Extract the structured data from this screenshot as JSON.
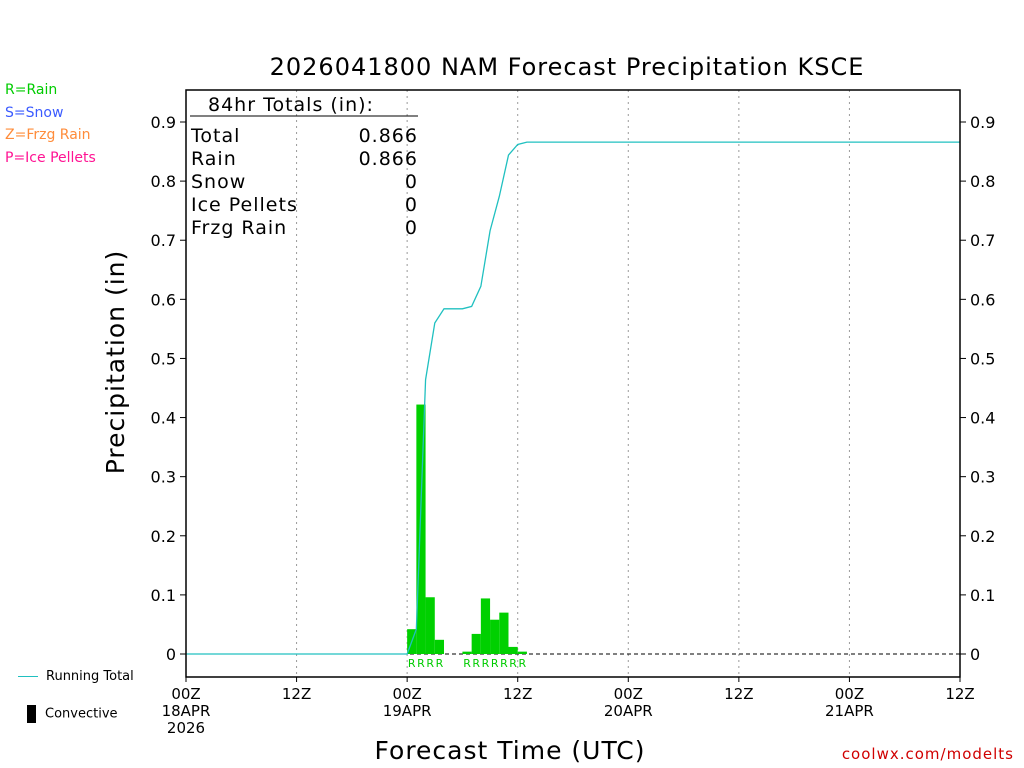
{
  "legend_keys": [
    {
      "text": "R=Rain",
      "color": "#00cc00"
    },
    {
      "text": "S=Snow",
      "color": "#3b5bff"
    },
    {
      "text": "Z=Frzg Rain",
      "color": "#ff8c3a"
    },
    {
      "text": "P=Ice Pellets",
      "color": "#ff1493"
    }
  ],
  "bottom_legend": {
    "running_total": "Running Total",
    "convective": "Convective"
  },
  "footer": "coolwx.com/modelts",
  "totals_box": {
    "title": "84hr Totals (in):",
    "rows": [
      {
        "label": "Total",
        "value": "0.866"
      },
      {
        "label": "Rain",
        "value": "0.866"
      },
      {
        "label": "Snow",
        "value": "0"
      },
      {
        "label": "Ice Pellets",
        "value": "0"
      },
      {
        "label": "Frzg Rain",
        "value": "0"
      }
    ]
  },
  "chart_data": {
    "type": "bar",
    "title": "2026041800 NAM Forecast Precipitation KSCE",
    "xlabel": "Forecast Time (UTC)",
    "ylabel": "Precipitation (in)",
    "xlim": [
      0,
      84
    ],
    "ylim": [
      -0.04,
      0.95
    ],
    "yticks": [
      0,
      0.1,
      0.2,
      0.3,
      0.4,
      0.5,
      0.6,
      0.7,
      0.8,
      0.9
    ],
    "ytick_labels": [
      "0",
      "0.1",
      "0.2",
      "0.3",
      "0.4",
      "0.5",
      "0.6",
      "0.7",
      "0.8",
      "0.9"
    ],
    "xticks": [
      {
        "hour": 0,
        "lines": [
          "00Z",
          "18APR",
          "2026"
        ]
      },
      {
        "hour": 12,
        "lines": [
          "12Z"
        ]
      },
      {
        "hour": 24,
        "lines": [
          "00Z",
          "19APR"
        ]
      },
      {
        "hour": 36,
        "lines": [
          "12Z"
        ]
      },
      {
        "hour": 48,
        "lines": [
          "00Z",
          "20APR"
        ]
      },
      {
        "hour": 60,
        "lines": [
          "12Z"
        ]
      },
      {
        "hour": 72,
        "lines": [
          "00Z",
          "21APR"
        ]
      },
      {
        "hour": 84,
        "lines": [
          "12Z"
        ]
      }
    ],
    "grid": "vertical dotted at 12h ticks",
    "bar_width_hours": 1,
    "bars": [
      {
        "hour": 25,
        "value": 0.042,
        "ptype": "R"
      },
      {
        "hour": 26,
        "value": 0.422,
        "ptype": "R"
      },
      {
        "hour": 27,
        "value": 0.096,
        "ptype": "R"
      },
      {
        "hour": 28,
        "value": 0.024,
        "ptype": "R"
      },
      {
        "hour": 31,
        "value": 0.004,
        "ptype": "R"
      },
      {
        "hour": 32,
        "value": 0.034,
        "ptype": "R"
      },
      {
        "hour": 33,
        "value": 0.094,
        "ptype": "R"
      },
      {
        "hour": 34,
        "value": 0.058,
        "ptype": "R"
      },
      {
        "hour": 35,
        "value": 0.07,
        "ptype": "R"
      },
      {
        "hour": 36,
        "value": 0.012,
        "ptype": "R"
      },
      {
        "hour": 37,
        "value": 0.004,
        "ptype": "R"
      }
    ],
    "running_total": {
      "name": "Running Total",
      "color": "#20c0c0",
      "x": [
        0,
        24,
        25,
        26,
        27,
        28,
        29,
        30,
        31,
        32,
        33,
        34,
        35,
        36,
        37,
        48,
        84
      ],
      "y": [
        0,
        0,
        0.042,
        0.464,
        0.56,
        0.584,
        0.584,
        0.584,
        0.588,
        0.622,
        0.716,
        0.774,
        0.844,
        0.862,
        0.866,
        0.866,
        0.866
      ]
    },
    "ptype_labels": [
      {
        "hour": 25,
        "text": "R"
      },
      {
        "hour": 26,
        "text": "R"
      },
      {
        "hour": 27,
        "text": "R"
      },
      {
        "hour": 28,
        "text": "R"
      },
      {
        "hour": 31,
        "text": "R"
      },
      {
        "hour": 32,
        "text": "R"
      },
      {
        "hour": 33,
        "text": "R"
      },
      {
        "hour": 34,
        "text": "R"
      },
      {
        "hour": 35,
        "text": "R"
      },
      {
        "hour": 36,
        "text": "R"
      },
      {
        "hour": 37,
        "text": "R"
      }
    ],
    "bar_color": "#00d000",
    "ptype_color": "#00cc00"
  }
}
